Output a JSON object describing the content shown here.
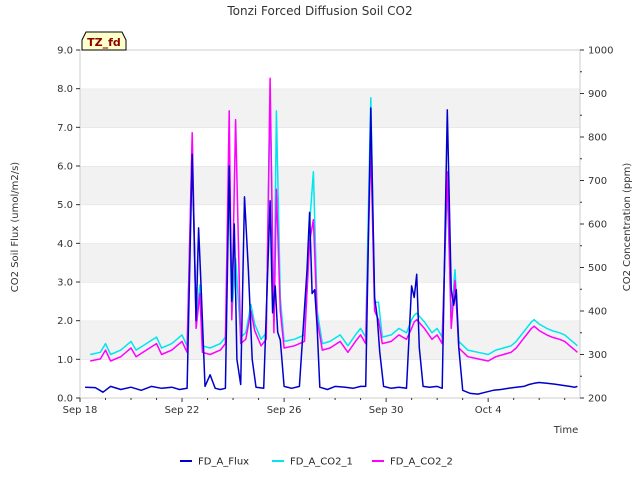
{
  "chart_data": {
    "type": "line",
    "title": "Tonzi Forced Diffusion Soil CO2",
    "site_badge": "TZ_fd",
    "xlabel": "Time",
    "ylabel_left": "CO2 Soil Flux (umol/m2/s)",
    "ylabel_right": "CO2 Concentration (ppm)",
    "x_start": "Sep 18",
    "x_range_days": [
      0,
      19.6
    ],
    "ylim_left": [
      0,
      9
    ],
    "ylim_right": [
      200,
      1000
    ],
    "x_ticks": [
      {
        "day": 0,
        "label": "Sep 18"
      },
      {
        "day": 4,
        "label": "Sep 22"
      },
      {
        "day": 8,
        "label": "Sep 26"
      },
      {
        "day": 12,
        "label": "Sep 30"
      },
      {
        "day": 16,
        "label": "Oct 4"
      }
    ],
    "y_ticks_left": [
      "0.0",
      "1.0",
      "2.0",
      "3.0",
      "4.0",
      "5.0",
      "6.0",
      "7.0",
      "8.0",
      "9.0"
    ],
    "y_ticks_right": [
      "200",
      "300",
      "400",
      "500",
      "600",
      "700",
      "800",
      "900",
      "1000"
    ],
    "grid": "horizontal bands",
    "legend_position": "bottom-center",
    "series": [
      {
        "name": "FD_A_Flux",
        "axis": "left",
        "color": "#0000cc",
        "points": [
          [
            0.2,
            0.28
          ],
          [
            0.6,
            0.27
          ],
          [
            0.9,
            0.15
          ],
          [
            1.2,
            0.3
          ],
          [
            1.6,
            0.22
          ],
          [
            2.0,
            0.28
          ],
          [
            2.4,
            0.2
          ],
          [
            2.8,
            0.3
          ],
          [
            3.2,
            0.25
          ],
          [
            3.6,
            0.28
          ],
          [
            3.9,
            0.22
          ],
          [
            4.2,
            0.25
          ],
          [
            4.4,
            6.3
          ],
          [
            4.55,
            2.0
          ],
          [
            4.65,
            4.4
          ],
          [
            4.75,
            2.8
          ],
          [
            4.9,
            0.3
          ],
          [
            5.1,
            0.6
          ],
          [
            5.3,
            0.25
          ],
          [
            5.5,
            0.22
          ],
          [
            5.7,
            0.25
          ],
          [
            5.85,
            6.0
          ],
          [
            5.95,
            2.5
          ],
          [
            6.05,
            4.5
          ],
          [
            6.15,
            1.0
          ],
          [
            6.3,
            0.35
          ],
          [
            6.45,
            5.2
          ],
          [
            6.6,
            3.3
          ],
          [
            6.75,
            1.0
          ],
          [
            6.9,
            0.28
          ],
          [
            7.2,
            0.25
          ],
          [
            7.45,
            5.1
          ],
          [
            7.55,
            2.2
          ],
          [
            7.65,
            2.9
          ],
          [
            7.75,
            1.7
          ],
          [
            7.85,
            1.5
          ],
          [
            8.0,
            0.3
          ],
          [
            8.3,
            0.25
          ],
          [
            8.6,
            0.3
          ],
          [
            8.9,
            3.3
          ],
          [
            9.0,
            4.8
          ],
          [
            9.1,
            2.7
          ],
          [
            9.2,
            2.8
          ],
          [
            9.3,
            1.8
          ],
          [
            9.4,
            0.28
          ],
          [
            9.7,
            0.22
          ],
          [
            10.0,
            0.3
          ],
          [
            10.4,
            0.28
          ],
          [
            10.7,
            0.25
          ],
          [
            11.0,
            0.3
          ],
          [
            11.2,
            0.3
          ],
          [
            11.4,
            7.5
          ],
          [
            11.55,
            2.6
          ],
          [
            11.65,
            2.1
          ],
          [
            11.75,
            1.2
          ],
          [
            11.9,
            0.3
          ],
          [
            12.2,
            0.25
          ],
          [
            12.5,
            0.28
          ],
          [
            12.8,
            0.25
          ],
          [
            13.0,
            2.9
          ],
          [
            13.1,
            2.6
          ],
          [
            13.2,
            3.2
          ],
          [
            13.3,
            1.3
          ],
          [
            13.45,
            0.3
          ],
          [
            13.7,
            0.28
          ],
          [
            14.0,
            0.3
          ],
          [
            14.2,
            0.25
          ],
          [
            14.4,
            7.45
          ],
          [
            14.55,
            2.8
          ],
          [
            14.65,
            2.4
          ],
          [
            14.75,
            2.8
          ],
          [
            14.85,
            1.3
          ],
          [
            15.0,
            0.2
          ],
          [
            15.3,
            0.12
          ],
          [
            15.6,
            0.1
          ],
          [
            15.9,
            0.15
          ],
          [
            16.2,
            0.2
          ],
          [
            16.5,
            0.22
          ],
          [
            16.8,
            0.25
          ],
          [
            17.1,
            0.28
          ],
          [
            17.4,
            0.3
          ],
          [
            17.6,
            0.35
          ],
          [
            17.8,
            0.38
          ],
          [
            18.0,
            0.4
          ],
          [
            18.3,
            0.38
          ],
          [
            18.6,
            0.36
          ],
          [
            18.9,
            0.33
          ],
          [
            19.2,
            0.3
          ],
          [
            19.4,
            0.28
          ],
          [
            19.5,
            0.3
          ]
        ]
      },
      {
        "name": "FD_A_CO2_1",
        "axis": "right",
        "color": "#00e5ee",
        "points": [
          [
            0.4,
            300
          ],
          [
            0.8,
            305
          ],
          [
            1.0,
            325
          ],
          [
            1.2,
            300
          ],
          [
            1.6,
            310
          ],
          [
            2.0,
            330
          ],
          [
            2.2,
            310
          ],
          [
            2.6,
            325
          ],
          [
            3.0,
            340
          ],
          [
            3.2,
            315
          ],
          [
            3.6,
            325
          ],
          [
            4.0,
            345
          ],
          [
            4.2,
            320
          ],
          [
            4.4,
            790
          ],
          [
            4.55,
            380
          ],
          [
            4.7,
            460
          ],
          [
            4.8,
            320
          ],
          [
            5.1,
            315
          ],
          [
            5.5,
            325
          ],
          [
            5.7,
            340
          ],
          [
            5.85,
            690
          ],
          [
            5.95,
            390
          ],
          [
            6.1,
            520
          ],
          [
            6.3,
            340
          ],
          [
            6.5,
            350
          ],
          [
            6.7,
            415
          ],
          [
            6.85,
            370
          ],
          [
            7.1,
            335
          ],
          [
            7.3,
            350
          ],
          [
            7.45,
            890
          ],
          [
            7.6,
            370
          ],
          [
            7.7,
            860
          ],
          [
            7.85,
            430
          ],
          [
            8.0,
            330
          ],
          [
            8.4,
            335
          ],
          [
            8.8,
            345
          ],
          [
            9.0,
            600
          ],
          [
            9.15,
            720
          ],
          [
            9.3,
            400
          ],
          [
            9.5,
            325
          ],
          [
            9.8,
            330
          ],
          [
            10.2,
            345
          ],
          [
            10.5,
            320
          ],
          [
            10.8,
            345
          ],
          [
            11.0,
            360
          ],
          [
            11.2,
            340
          ],
          [
            11.4,
            890
          ],
          [
            11.55,
            420
          ],
          [
            11.7,
            420
          ],
          [
            11.85,
            340
          ],
          [
            12.2,
            345
          ],
          [
            12.5,
            360
          ],
          [
            12.8,
            350
          ],
          [
            13.0,
            380
          ],
          [
            13.1,
            390
          ],
          [
            13.2,
            395
          ],
          [
            13.5,
            375
          ],
          [
            13.8,
            350
          ],
          [
            14.0,
            360
          ],
          [
            14.2,
            340
          ],
          [
            14.4,
            690
          ],
          [
            14.55,
            380
          ],
          [
            14.7,
            495
          ],
          [
            14.85,
            330
          ],
          [
            15.2,
            310
          ],
          [
            15.6,
            305
          ],
          [
            16.0,
            300
          ],
          [
            16.3,
            310
          ],
          [
            16.6,
            315
          ],
          [
            16.9,
            320
          ],
          [
            17.1,
            330
          ],
          [
            17.3,
            345
          ],
          [
            17.5,
            360
          ],
          [
            17.7,
            375
          ],
          [
            17.8,
            380
          ],
          [
            18.0,
            370
          ],
          [
            18.3,
            360
          ],
          [
            18.5,
            355
          ],
          [
            18.8,
            350
          ],
          [
            19.0,
            345
          ],
          [
            19.2,
            335
          ],
          [
            19.4,
            325
          ],
          [
            19.5,
            320
          ]
        ]
      },
      {
        "name": "FD_A_CO2_2",
        "axis": "right",
        "color": "#ff00ff",
        "points": [
          [
            0.4,
            285
          ],
          [
            0.8,
            290
          ],
          [
            1.0,
            310
          ],
          [
            1.2,
            285
          ],
          [
            1.6,
            295
          ],
          [
            2.0,
            315
          ],
          [
            2.2,
            295
          ],
          [
            2.6,
            310
          ],
          [
            3.0,
            325
          ],
          [
            3.2,
            300
          ],
          [
            3.6,
            310
          ],
          [
            4.0,
            330
          ],
          [
            4.2,
            305
          ],
          [
            4.4,
            810
          ],
          [
            4.55,
            360
          ],
          [
            4.7,
            440
          ],
          [
            4.8,
            305
          ],
          [
            5.1,
            300
          ],
          [
            5.5,
            310
          ],
          [
            5.7,
            325
          ],
          [
            5.85,
            860
          ],
          [
            5.95,
            380
          ],
          [
            6.1,
            840
          ],
          [
            6.3,
            325
          ],
          [
            6.5,
            335
          ],
          [
            6.7,
            400
          ],
          [
            6.85,
            355
          ],
          [
            7.1,
            320
          ],
          [
            7.3,
            335
          ],
          [
            7.45,
            935
          ],
          [
            7.6,
            350
          ],
          [
            7.7,
            680
          ],
          [
            7.85,
            400
          ],
          [
            8.0,
            315
          ],
          [
            8.4,
            320
          ],
          [
            8.8,
            330
          ],
          [
            9.0,
            560
          ],
          [
            9.15,
            610
          ],
          [
            9.3,
            380
          ],
          [
            9.5,
            310
          ],
          [
            9.8,
            315
          ],
          [
            10.2,
            330
          ],
          [
            10.5,
            305
          ],
          [
            10.8,
            330
          ],
          [
            11.0,
            345
          ],
          [
            11.2,
            325
          ],
          [
            11.4,
            780
          ],
          [
            11.55,
            400
          ],
          [
            11.7,
            380
          ],
          [
            11.85,
            325
          ],
          [
            12.2,
            330
          ],
          [
            12.5,
            345
          ],
          [
            12.8,
            335
          ],
          [
            13.0,
            360
          ],
          [
            13.1,
            375
          ],
          [
            13.2,
            380
          ],
          [
            13.5,
            360
          ],
          [
            13.8,
            335
          ],
          [
            14.0,
            345
          ],
          [
            14.2,
            325
          ],
          [
            14.4,
            720
          ],
          [
            14.55,
            360
          ],
          [
            14.7,
            470
          ],
          [
            14.85,
            315
          ],
          [
            15.2,
            295
          ],
          [
            15.6,
            290
          ],
          [
            16.0,
            285
          ],
          [
            16.3,
            295
          ],
          [
            16.6,
            300
          ],
          [
            16.9,
            305
          ],
          [
            17.1,
            315
          ],
          [
            17.3,
            330
          ],
          [
            17.5,
            345
          ],
          [
            17.7,
            360
          ],
          [
            17.8,
            365
          ],
          [
            18.0,
            355
          ],
          [
            18.3,
            345
          ],
          [
            18.5,
            340
          ],
          [
            18.8,
            335
          ],
          [
            19.0,
            330
          ],
          [
            19.2,
            320
          ],
          [
            19.4,
            310
          ],
          [
            19.5,
            305
          ]
        ]
      }
    ]
  }
}
